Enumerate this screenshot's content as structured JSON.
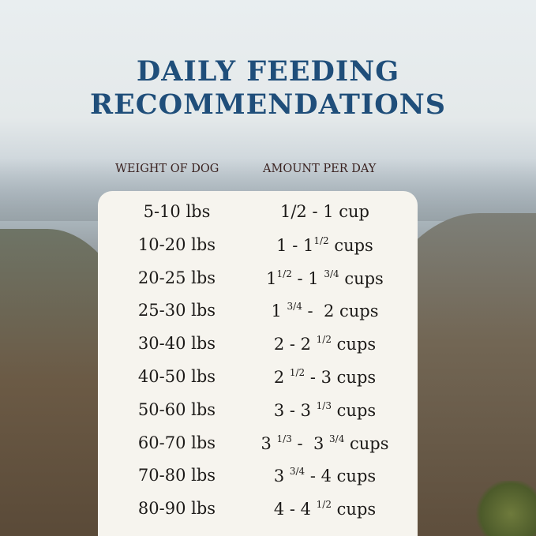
{
  "title": {
    "line1": "DAILY FEEDING",
    "line2": "RECOMMENDATIONS"
  },
  "colors": {
    "title": "#1f4e7a",
    "header": "#3a2220",
    "card": "#f6f4ee"
  },
  "headers": {
    "weight": "WEIGHT OF DOG",
    "amount": "AMOUNT PER DAY"
  },
  "rows": [
    {
      "weight": "5-10 lbs",
      "amount": [
        {
          "t": "1/2 - 1 cup"
        }
      ]
    },
    {
      "weight": "10-20 lbs",
      "amount": [
        {
          "t": "1 - 1"
        },
        {
          "sup": "1/2"
        },
        {
          "t": " cups"
        }
      ]
    },
    {
      "weight": "20-25 lbs",
      "amount": [
        {
          "t": "1"
        },
        {
          "sup": "1/2"
        },
        {
          "t": " - 1 "
        },
        {
          "sup": "3/4"
        },
        {
          "t": " cups"
        }
      ]
    },
    {
      "weight": "25-30 lbs",
      "amount": [
        {
          "t": "1 "
        },
        {
          "sup": "3/4"
        },
        {
          "t": " -  2 cups"
        }
      ]
    },
    {
      "weight": "30-40 lbs",
      "amount": [
        {
          "t": "2 - 2 "
        },
        {
          "sup": "1/2"
        },
        {
          "t": " cups"
        }
      ]
    },
    {
      "weight": "40-50 lbs",
      "amount": [
        {
          "t": "2 "
        },
        {
          "sup": "1/2"
        },
        {
          "t": " - 3 cups"
        }
      ]
    },
    {
      "weight": "50-60 lbs",
      "amount": [
        {
          "t": "3 - 3 "
        },
        {
          "sup": "1/3"
        },
        {
          "t": " cups"
        }
      ]
    },
    {
      "weight": "60-70 lbs",
      "amount": [
        {
          "t": "3 "
        },
        {
          "sup": "1/3"
        },
        {
          "t": " -  3 "
        },
        {
          "sup": "3/4"
        },
        {
          "t": " cups"
        }
      ]
    },
    {
      "weight": "70-80 lbs",
      "amount": [
        {
          "t": "3 "
        },
        {
          "sup": "3/4"
        },
        {
          "t": " - 4 cups"
        }
      ]
    },
    {
      "weight": "80-90 lbs",
      "amount": [
        {
          "t": "4 - 4 "
        },
        {
          "sup": "1/2"
        },
        {
          "t": " cups"
        }
      ]
    }
  ]
}
